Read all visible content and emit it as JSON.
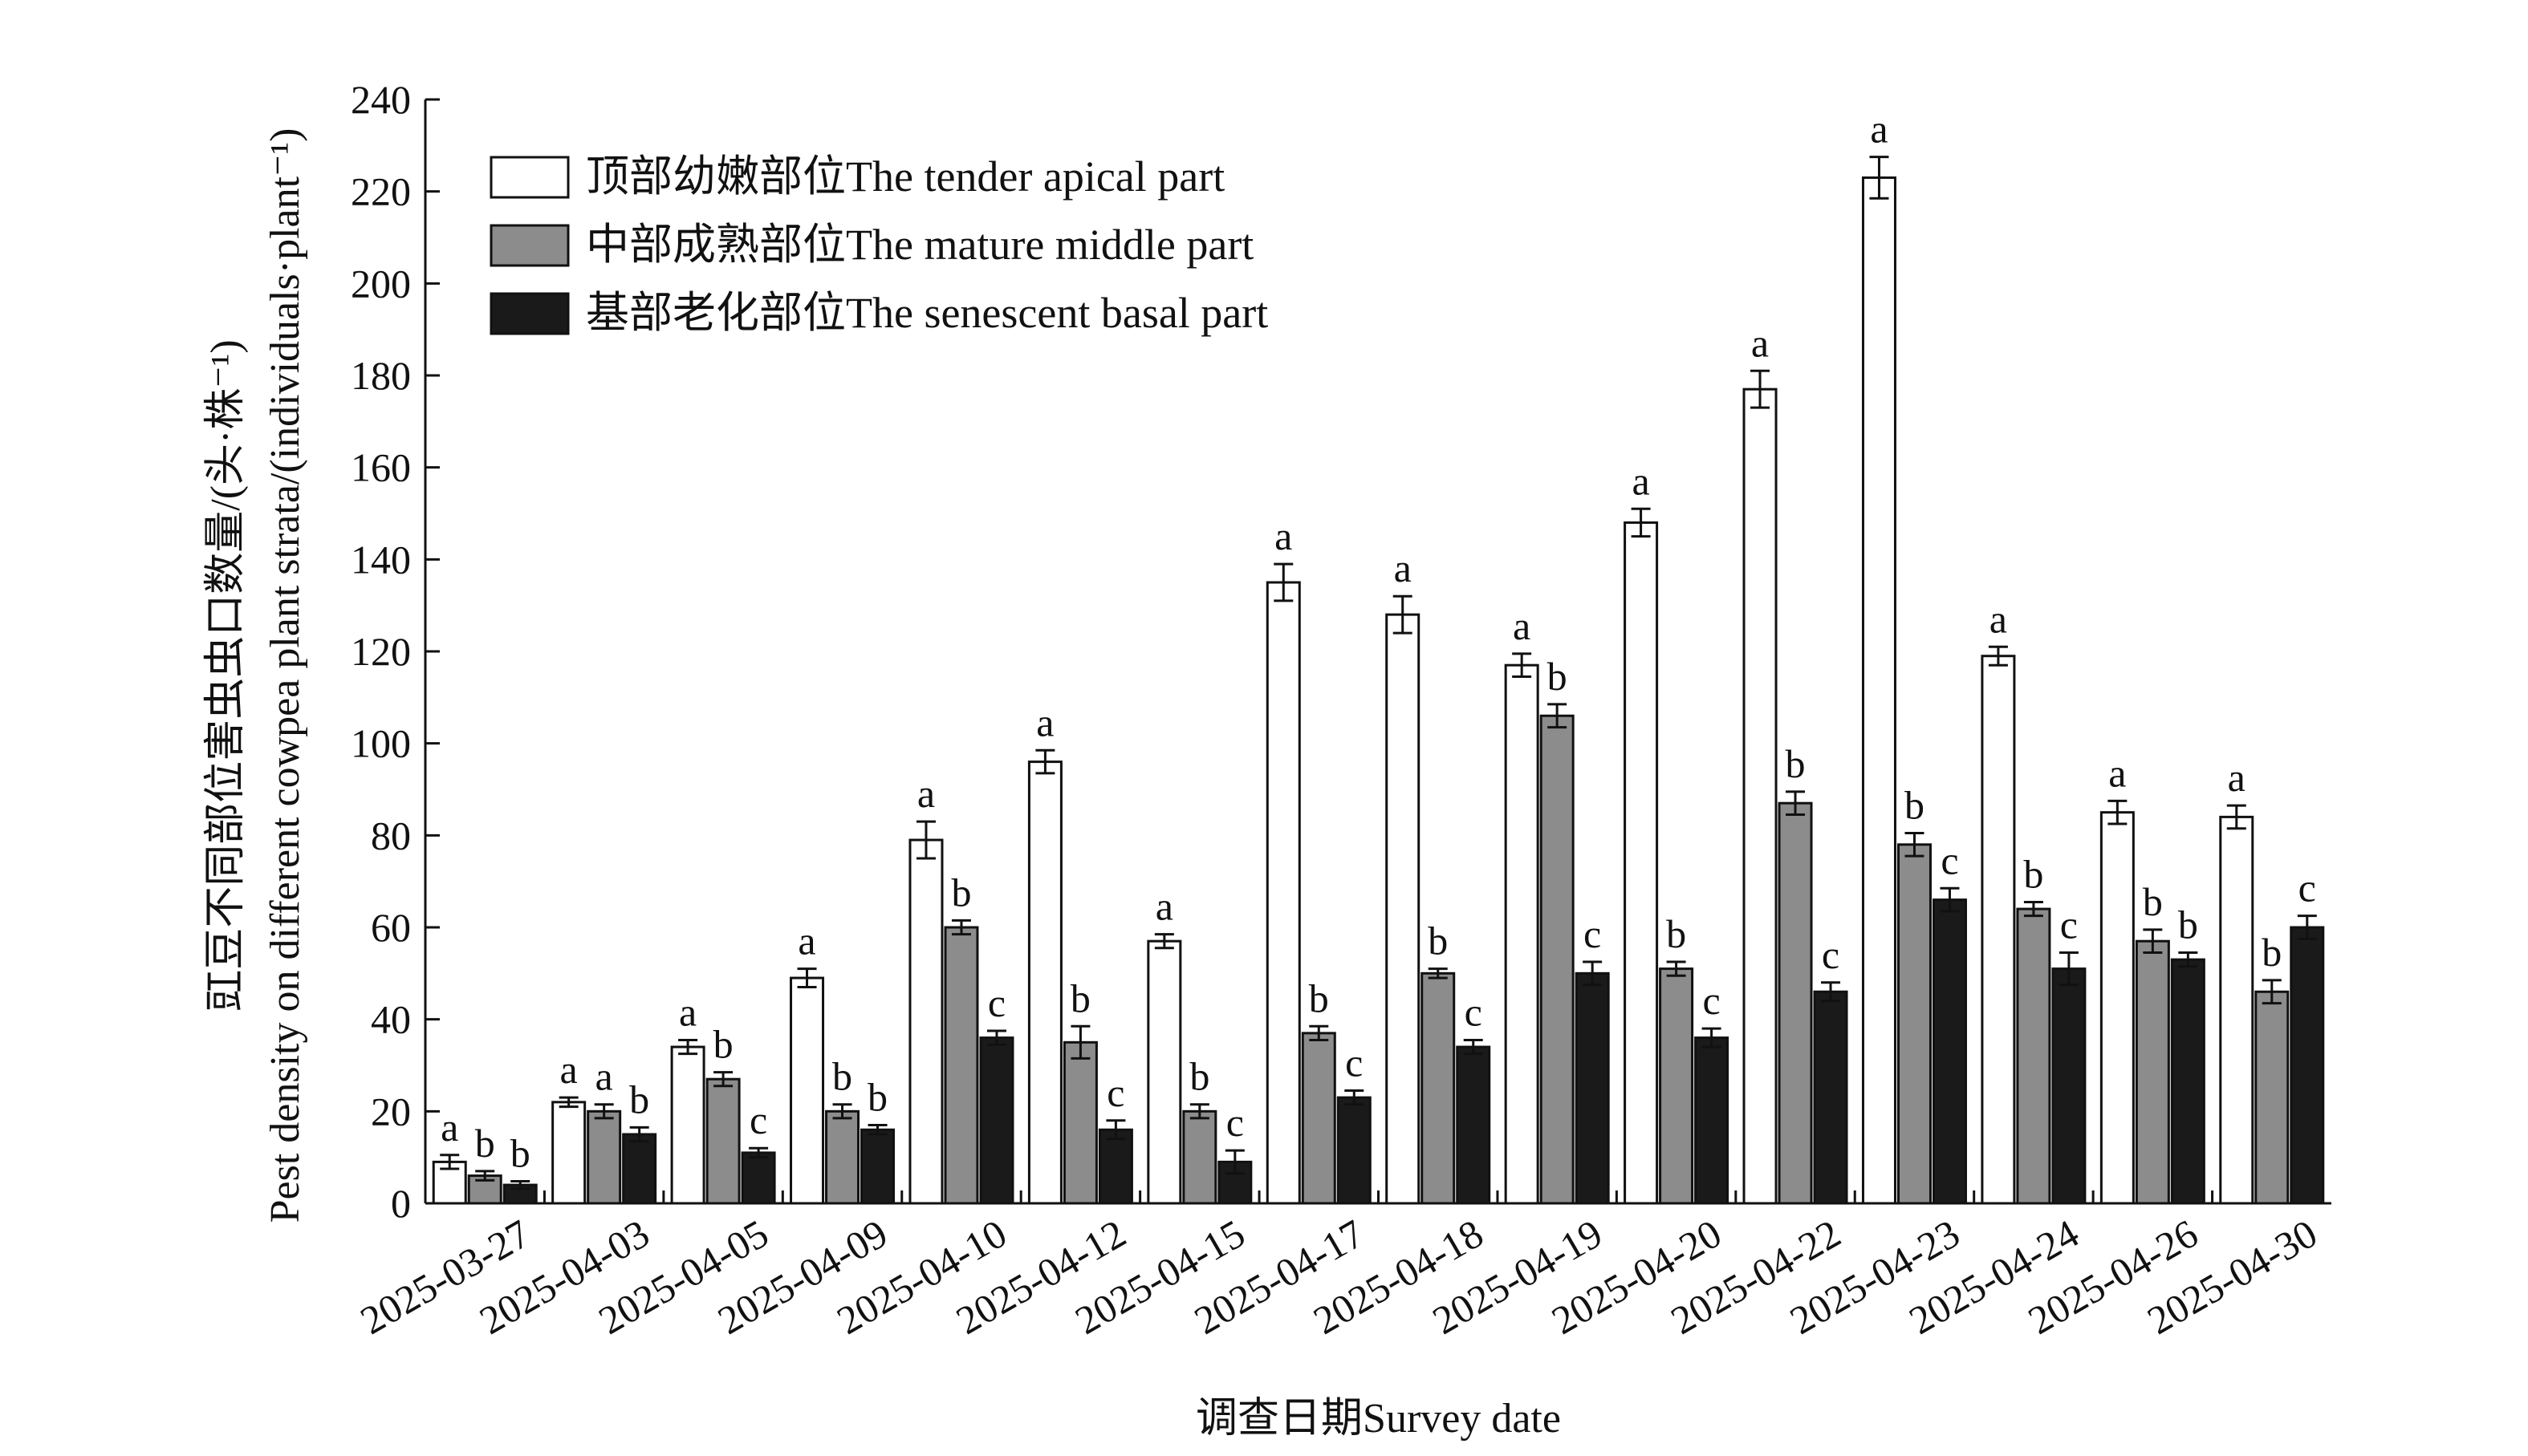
{
  "chart_data": {
    "type": "bar",
    "xlabel": "调查日期Survey date",
    "ylabel": "豇豆不同部位害虫虫口数量/(头·株⁻¹)",
    "ylabel_en": "Pest density on different cowpea plant strata/(individuals·plant⁻¹)",
    "ylim": [
      0,
      240
    ],
    "yticks": [
      0,
      20,
      40,
      60,
      80,
      100,
      120,
      140,
      160,
      180,
      200,
      220,
      240
    ],
    "categories": [
      "2025-03-27",
      "2025-04-03",
      "2025-04-05",
      "2025-04-09",
      "2025-04-10",
      "2025-04-12",
      "2025-04-15",
      "2025-04-17",
      "2025-04-18",
      "2025-04-19",
      "2025-04-20",
      "2025-04-22",
      "2025-04-23",
      "2025-04-24",
      "2025-04-26",
      "2025-04-30"
    ],
    "legend_position": "top-left",
    "series": [
      {
        "name": "顶部幼嫩部位The tender apical part",
        "color": "#ffffff",
        "values": [
          9,
          22,
          34,
          49,
          79,
          96,
          57,
          135,
          128,
          117,
          148,
          177,
          223,
          119,
          85,
          84
        ],
        "errors": [
          1.5,
          1,
          1.5,
          2,
          4,
          2.5,
          1.5,
          4,
          4,
          2.5,
          3,
          4,
          4.5,
          2,
          2.5,
          2.5
        ],
        "labels": [
          "a",
          "a",
          "a",
          "a",
          "a",
          "a",
          "a",
          "a",
          "a",
          "a",
          "a",
          "a",
          "a",
          "a",
          "a",
          "a"
        ]
      },
      {
        "name": "中部成熟部位The mature middle part",
        "color": "#8c8c8c",
        "values": [
          6,
          20,
          27,
          20,
          60,
          35,
          20,
          37,
          50,
          106,
          51,
          87,
          78,
          64,
          57,
          46
        ],
        "errors": [
          1,
          1.5,
          1.5,
          1.5,
          1.5,
          3.5,
          1.5,
          1.5,
          1,
          2.5,
          1.5,
          2.5,
          2.5,
          1.5,
          2.5,
          2.5
        ],
        "labels": [
          "b",
          "a",
          "b",
          "b",
          "b",
          "b",
          "b",
          "b",
          "b",
          "b",
          "b",
          "b",
          "b",
          "b",
          "b",
          "b"
        ]
      },
      {
        "name": "基部老化部位The senescent basal part",
        "color": "#1a1a1a",
        "values": [
          4,
          15,
          11,
          16,
          36,
          16,
          9,
          23,
          34,
          50,
          36,
          46,
          66,
          51,
          53,
          60
        ],
        "errors": [
          0.8,
          1.5,
          1,
          1,
          1.5,
          2,
          2.5,
          1.5,
          1.5,
          2.5,
          2,
          2,
          2.5,
          3.5,
          1.5,
          2.5
        ],
        "labels": [
          "b",
          "b",
          "c",
          "b",
          "c",
          "c",
          "c",
          "c",
          "c",
          "c",
          "c",
          "c",
          "c",
          "c",
          "b",
          "c"
        ]
      }
    ]
  }
}
